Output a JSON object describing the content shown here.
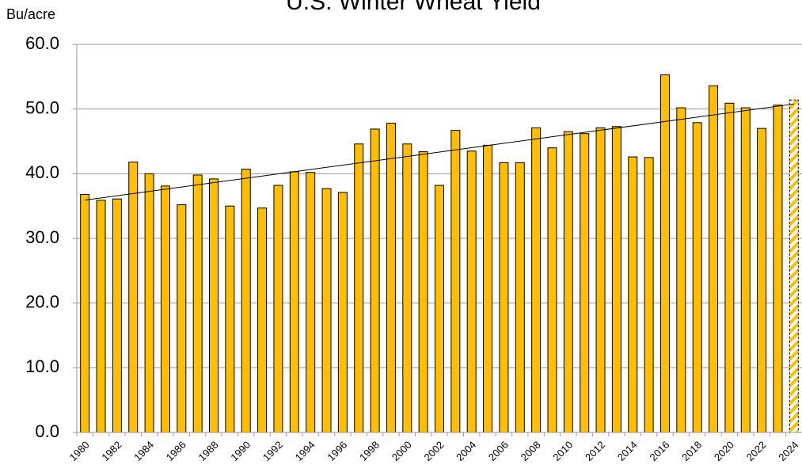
{
  "chart_data": {
    "type": "bar",
    "title": "U.S. Winter Wheat Yield",
    "y_label": "Bu/acre",
    "categories": [
      "1980",
      null,
      "1982",
      null,
      "1984",
      null,
      "1986",
      null,
      "1988",
      null,
      "1990",
      null,
      "1992",
      null,
      "1994",
      null,
      "1996",
      null,
      "1998",
      null,
      "2000",
      null,
      "2002",
      null,
      "2004",
      null,
      "2006",
      null,
      "2008",
      null,
      "2010",
      null,
      "2012",
      null,
      "2014",
      null,
      "2016",
      null,
      "2018",
      null,
      "2020",
      null,
      "2022",
      null,
      "2024"
    ],
    "values": [
      36.8,
      35.9,
      36.1,
      41.8,
      40.0,
      38.1,
      35.2,
      39.8,
      39.2,
      35.0,
      40.7,
      34.7,
      38.2,
      40.3,
      40.2,
      37.7,
      37.1,
      44.6,
      46.9,
      47.8,
      44.6,
      43.4,
      38.2,
      46.7,
      43.5,
      44.4,
      41.7,
      41.7,
      47.1,
      44.0,
      46.5,
      46.2,
      47.1,
      47.3,
      42.6,
      42.5,
      55.3,
      50.2,
      47.9,
      53.6,
      50.9,
      50.2,
      47.0,
      50.6,
      51.4
    ],
    "color": "#ffbf00",
    "ylim": [
      0,
      60
    ],
    "yticks": [
      {
        "value": 0,
        "label": "0.0"
      },
      {
        "value": 10,
        "label": "10.0"
      },
      {
        "value": 20,
        "label": "20.0"
      },
      {
        "value": 30,
        "label": "30.0"
      },
      {
        "value": 40,
        "label": "40.0"
      },
      {
        "value": 50,
        "label": "50.0"
      },
      {
        "value": 60,
        "label": "60.0"
      }
    ],
    "grid": true
  }
}
